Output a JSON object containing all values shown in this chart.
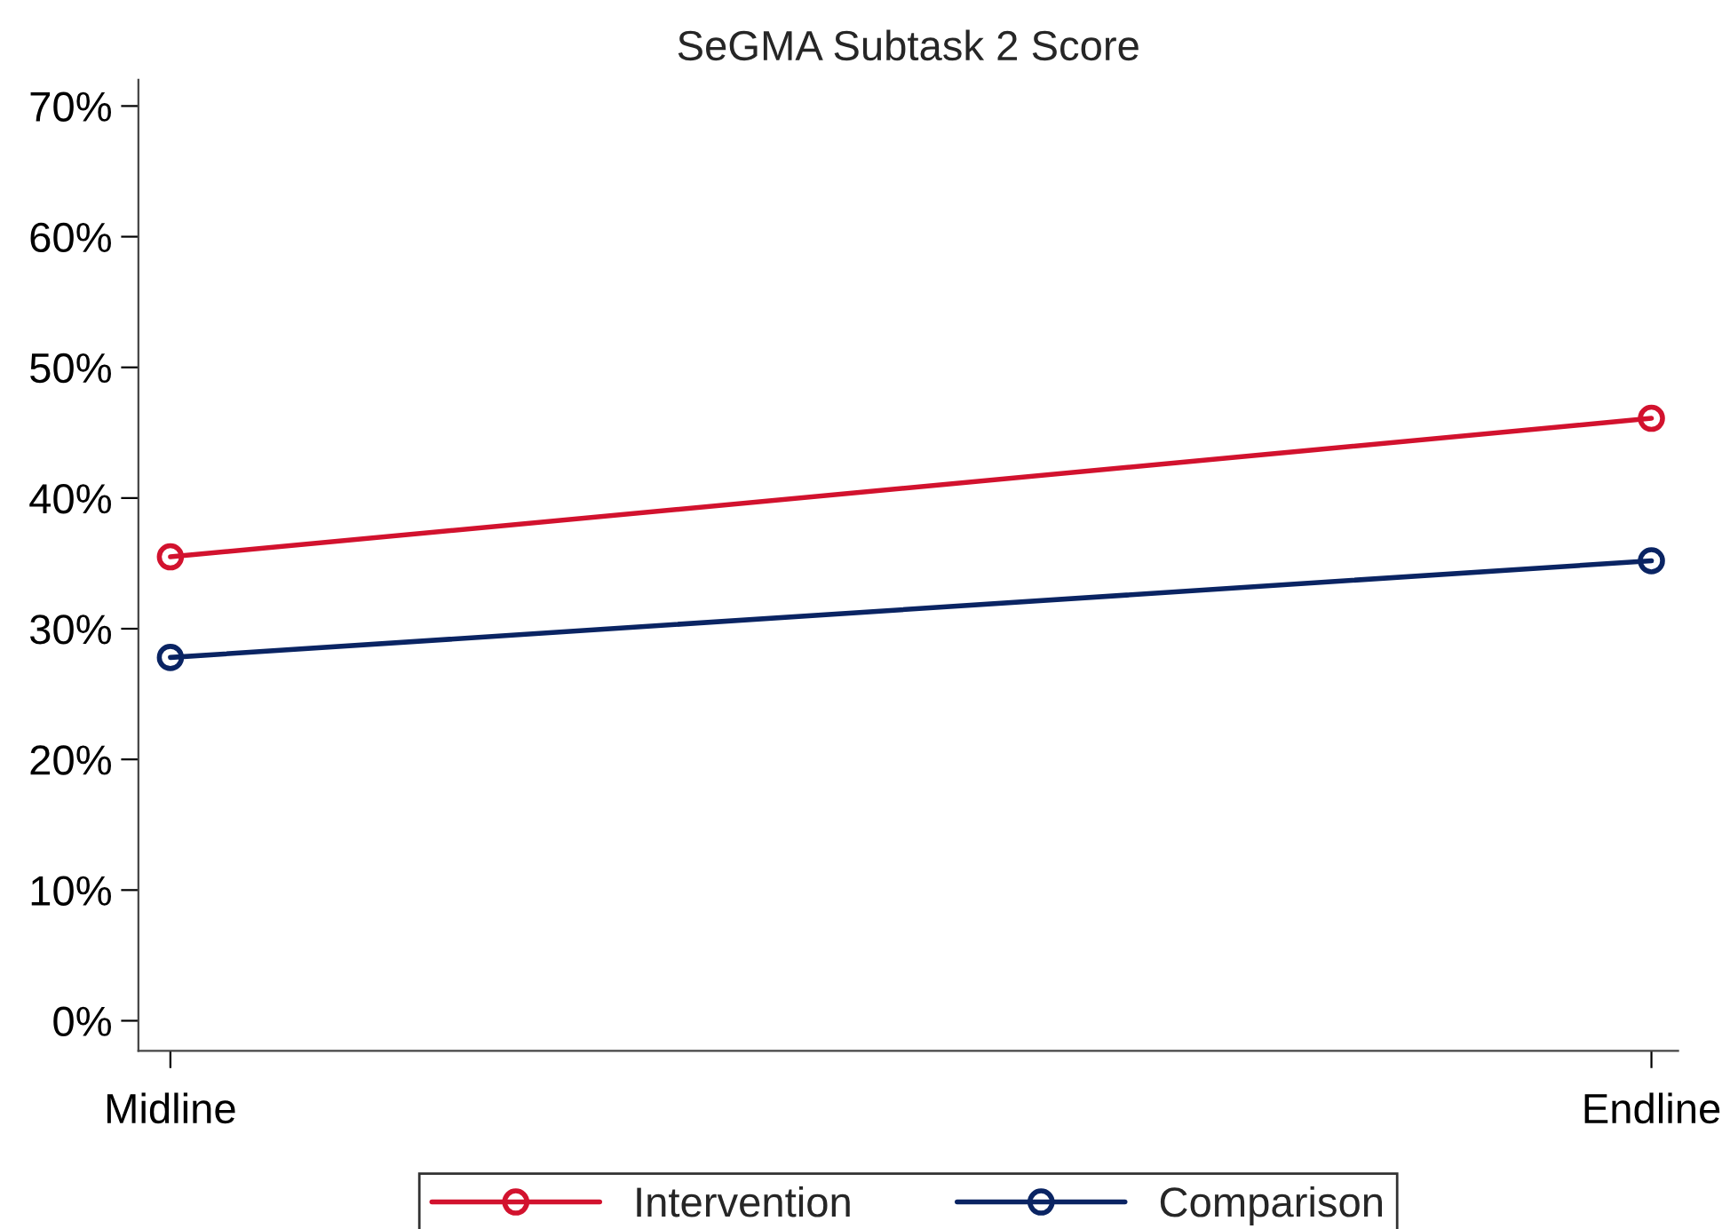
{
  "chart_data": {
    "type": "line",
    "title": "SeGMA Subtask 2 Score",
    "categories": [
      "Midline",
      "Endline"
    ],
    "series": [
      {
        "name": "Intervention",
        "color": "#d2122e",
        "values": [
          35.5,
          46.1
        ]
      },
      {
        "name": "Comparison",
        "color": "#0a2463",
        "values": [
          27.8,
          35.2
        ]
      }
    ],
    "ylim": [
      -2.3,
      72
    ],
    "yticks": [
      {
        "value": 0,
        "label": "0%"
      },
      {
        "value": 10,
        "label": "10%"
      },
      {
        "value": 20,
        "label": "20%"
      },
      {
        "value": 30,
        "label": "30%"
      },
      {
        "value": 40,
        "label": "40%"
      },
      {
        "value": 50,
        "label": "50%"
      },
      {
        "value": 60,
        "label": "60%"
      },
      {
        "value": 70,
        "label": "70%"
      }
    ],
    "marker": "circle",
    "line_style": "solid",
    "grid": false,
    "legend": "bottom"
  }
}
